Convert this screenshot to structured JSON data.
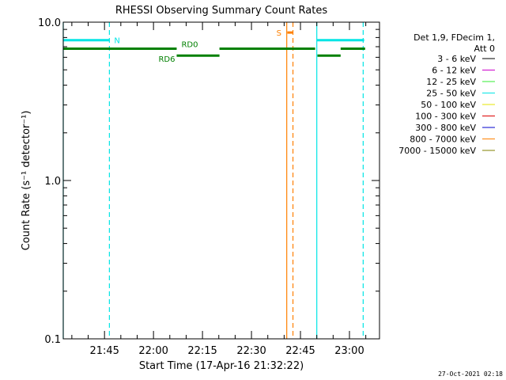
{
  "chart_data": {
    "type": "line",
    "title": "RHESSI Observing Summary Count Rates",
    "xlabel": "Start Time (17-Apr-16 21:32:22)",
    "ylabel": "Count Rate (s⁻¹ detector⁻¹)",
    "yscale": "log",
    "ylim": [
      0.1,
      10.0
    ],
    "yticks": [
      "0.1",
      "1.0",
      "10.0"
    ],
    "xlim_minutes_after_2130": [
      2.37,
      99.2
    ],
    "xticks": [
      {
        "label": "21:45",
        "min": 15
      },
      {
        "label": "22:00",
        "min": 30
      },
      {
        "label": "22:15",
        "min": 45
      },
      {
        "label": "22:30",
        "min": 60
      },
      {
        "label": "22:45",
        "min": 75
      },
      {
        "label": "23:00",
        "min": 90
      }
    ],
    "legend": {
      "placement": "right",
      "header": [
        "Det 1,9, FDecim 1,",
        "Att 0"
      ],
      "entries": [
        {
          "label": "3 - 6 keV",
          "color": "#000000"
        },
        {
          "label": "6 - 12 keV",
          "color": "#cc00cc"
        },
        {
          "label": "12 - 25 keV",
          "color": "#33ee33"
        },
        {
          "label": "25 - 50 keV",
          "color": "#00e5e5"
        },
        {
          "label": "50 - 100 keV",
          "color": "#e6e600"
        },
        {
          "label": "100 - 300 keV",
          "color": "#dd0000"
        },
        {
          "label": "300 - 800 keV",
          "color": "#0000cc"
        },
        {
          "label": "800 - 7000 keV",
          "color": "#ff8000"
        },
        {
          "label": "7000 - 15000 keV",
          "color": "#808000"
        }
      ]
    },
    "night_intervals": [
      {
        "label": "N",
        "start_min": 2.37,
        "end_min": 16.5,
        "color": "#00e5e5"
      },
      {
        "label": "",
        "start_min": 80,
        "end_min": 94.2,
        "color": "#00e5e5"
      }
    ],
    "saa_intervals": [
      {
        "label": "S",
        "start_min": 70.8,
        "end_min": 72.7,
        "color": "#ff8000"
      }
    ],
    "decimation_segments": [
      {
        "label": "RD0",
        "start_min": 2.37,
        "end_min": 37.1,
        "level": 6.8,
        "color": "#008000"
      },
      {
        "label": "RD6",
        "start_min": 37.1,
        "end_min": 50.2,
        "level": 6.15,
        "color": "#008000"
      },
      {
        "label": "",
        "start_min": 50.2,
        "end_min": 79.5,
        "level": 6.8,
        "color": "#008000"
      },
      {
        "label": "",
        "start_min": 80.2,
        "end_min": 87.3,
        "level": 6.15,
        "color": "#008000"
      },
      {
        "label": "",
        "start_min": 87.3,
        "end_min": 94.8,
        "level": 6.8,
        "color": "#008000"
      }
    ],
    "flag_bars": [
      {
        "start_min": 2.37,
        "end_min": 16.5,
        "level": 7.7,
        "color": "#00e5e5"
      },
      {
        "start_min": 80.1,
        "end_min": 94.5,
        "level": 7.7,
        "color": "#00e5e5"
      },
      {
        "start_min": 71.0,
        "end_min": 72.6,
        "level": 8.6,
        "color": "#ff8000"
      }
    ],
    "series": []
  },
  "footer": "27-Oct-2021 02:18"
}
